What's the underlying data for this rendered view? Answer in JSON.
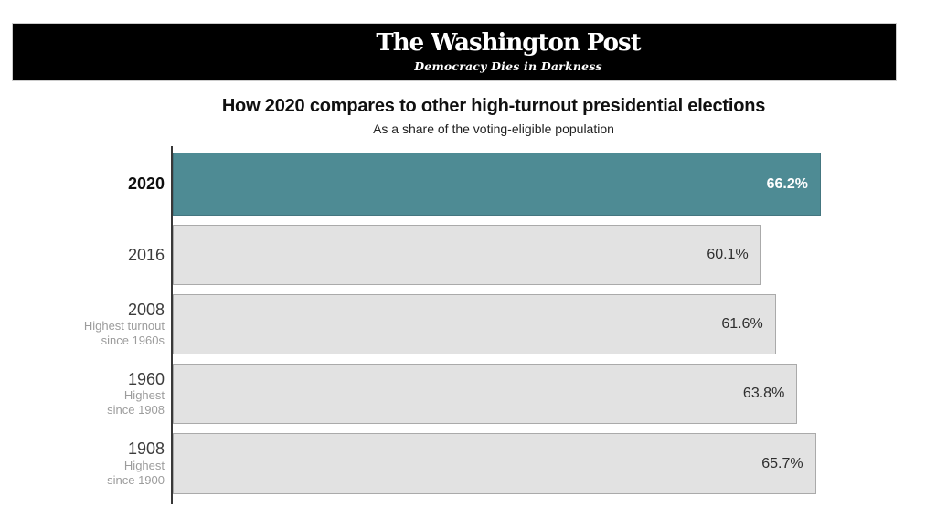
{
  "banner": {
    "logo": "The Washington Post",
    "tagline": "Democracy Dies in Darkness"
  },
  "chart_data": {
    "type": "bar",
    "orientation": "horizontal",
    "title": "How 2020 compares to other high-turnout presidential elections",
    "subtitle": "As a share of the voting-eligible population",
    "value_suffix": "%",
    "xmax": 66.2,
    "grid": false,
    "legend": false,
    "rows": [
      {
        "year": "2020",
        "sublabel1": "",
        "sublabel2": "",
        "value": 66.2,
        "display": "66.2%",
        "highlight": true
      },
      {
        "year": "2016",
        "sublabel1": "",
        "sublabel2": "",
        "value": 60.1,
        "display": "60.1%",
        "highlight": false
      },
      {
        "year": "2008",
        "sublabel1": "Highest turnout",
        "sublabel2": "since 1960s",
        "value": 61.6,
        "display": "61.6%",
        "highlight": false
      },
      {
        "year": "1960",
        "sublabel1": "Highest",
        "sublabel2": "since 1908",
        "value": 63.8,
        "display": "63.8%",
        "highlight": false
      },
      {
        "year": "1908",
        "sublabel1": "Highest",
        "sublabel2": "since 1900",
        "value": 65.7,
        "display": "65.7%",
        "highlight": false
      }
    ],
    "colors": {
      "highlight_bar": "#4e8b94",
      "highlight_bar_border": "#447680",
      "bar": "#e2e2e2",
      "bar_border": "#aaaaaa",
      "highlight_value_text": "#ffffff",
      "value_text": "#2e2e2e",
      "axis": "#383838",
      "sublabel_text": "#9c9c9c",
      "banner_background": "#000000"
    }
  }
}
